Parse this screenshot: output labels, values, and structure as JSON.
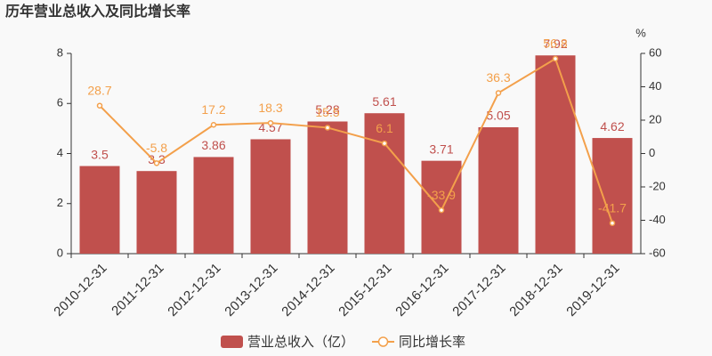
{
  "chart_data": {
    "type": "bar",
    "title": "历年营业总收入及同比增长率",
    "categories": [
      "2010-12-31",
      "2011-12-31",
      "2012-12-31",
      "2013-12-31",
      "2014-12-31",
      "2015-12-31",
      "2016-12-31",
      "2017-12-31",
      "2018-12-31",
      "2019-12-31"
    ],
    "series": [
      {
        "name": "营业总收入（亿）",
        "type": "bar",
        "color": "#c0504d",
        "values": [
          3.5,
          3.3,
          3.86,
          4.57,
          5.28,
          5.61,
          3.71,
          5.05,
          7.92,
          4.62
        ]
      },
      {
        "name": "同比增长率",
        "type": "line",
        "axis": "y2",
        "color": "#f3a04b",
        "values": [
          28.7,
          -5.8,
          17.2,
          18.3,
          15.5,
          6.1,
          -33.9,
          36.3,
          56.8,
          -41.7
        ]
      }
    ],
    "ylim": [
      0,
      8
    ],
    "yticks": [
      0,
      2,
      4,
      6,
      8
    ],
    "y2lim": [
      -60,
      60
    ],
    "y2ticks": [
      -60,
      -40,
      -20,
      0,
      20,
      40,
      60
    ],
    "y2label": "%"
  }
}
